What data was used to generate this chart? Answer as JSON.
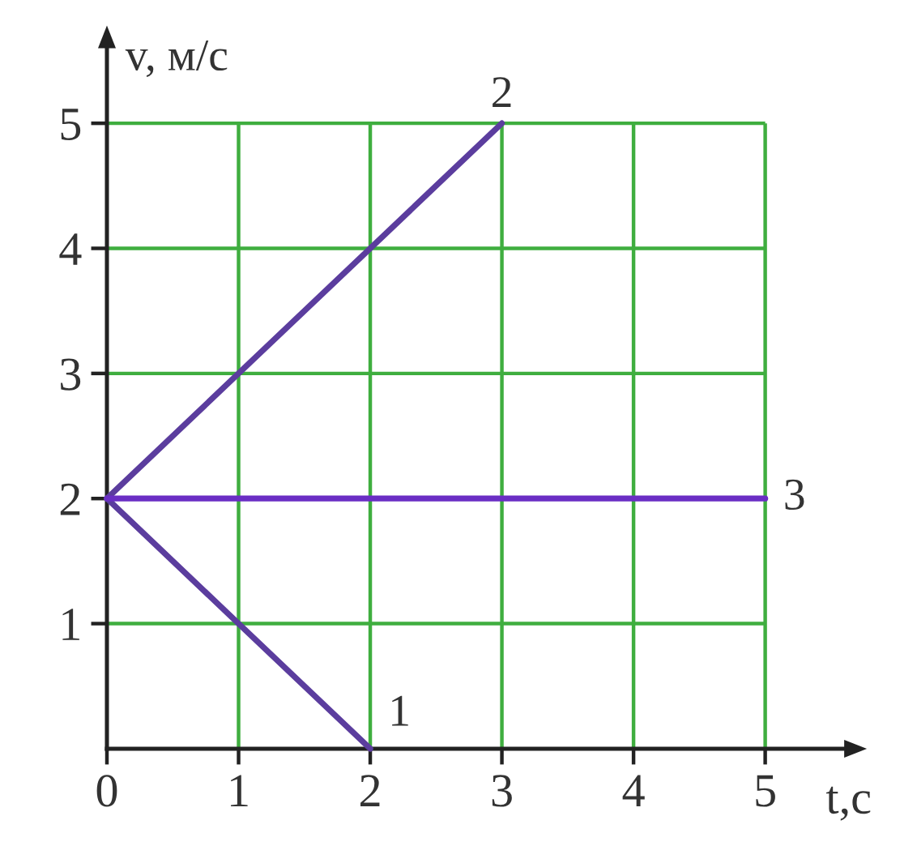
{
  "chart_data": {
    "type": "line",
    "xlabel": "t,с",
    "ylabel": "v, м/с",
    "xlim": [
      0,
      5.6
    ],
    "ylim": [
      0,
      5.6
    ],
    "xticks": [
      0,
      1,
      2,
      3,
      4,
      5
    ],
    "yticks": [
      1,
      2,
      3,
      4,
      5
    ],
    "grid": true,
    "line_style": "solid",
    "series": [
      {
        "name": "1",
        "color": "#5b3d9e",
        "x": [
          0,
          2
        ],
        "values": [
          2,
          0
        ]
      },
      {
        "name": "2",
        "color": "#5b3d9e",
        "x": [
          0,
          3
        ],
        "values": [
          2,
          5
        ]
      },
      {
        "name": "3",
        "color": "#6a2ec4",
        "x": [
          0,
          5
        ],
        "values": [
          2,
          2
        ]
      }
    ]
  }
}
